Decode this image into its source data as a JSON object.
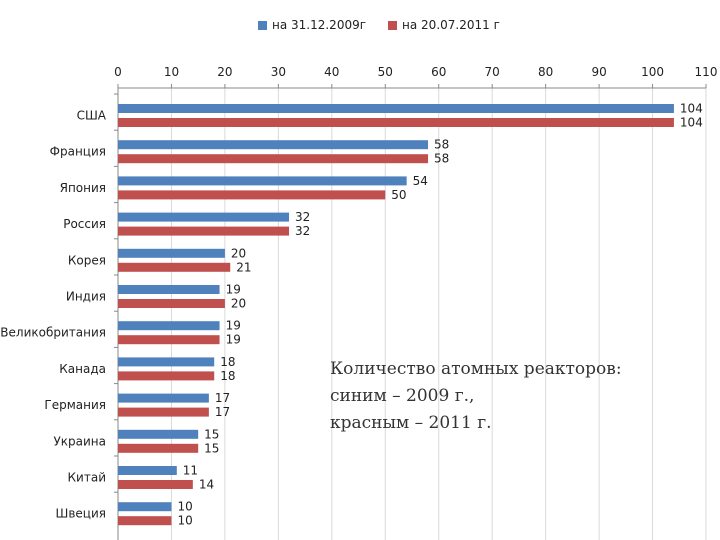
{
  "legend": [
    {
      "label": "на 31.12.2009г",
      "color": "#4f81bd"
    },
    {
      "label": "на 20.07.2011 г",
      "color": "#c0504d"
    }
  ],
  "note": {
    "line1": "Количество атомных реакторов:",
    "line2": "синим – 2009 г.,",
    "line3": "красным – 2011 г."
  },
  "chart_data": {
    "type": "bar",
    "orientation": "horizontal",
    "categories": [
      "США",
      "Франция",
      "Япония",
      "Россия",
      "Корея",
      "Индия",
      "Великобритания",
      "Канада",
      "Германия",
      "Украина",
      "Китай",
      "Швеция"
    ],
    "series": [
      {
        "name": "на 31.12.2009г",
        "color": "#4f81bd",
        "values": [
          104,
          58,
          54,
          32,
          20,
          19,
          19,
          18,
          17,
          15,
          11,
          10
        ]
      },
      {
        "name": "на 20.07.2011 г",
        "color": "#c0504d",
        "values": [
          104,
          58,
          50,
          32,
          21,
          20,
          19,
          18,
          17,
          15,
          14,
          10
        ]
      }
    ],
    "xlim": [
      0,
      110
    ],
    "xticks": [
      0,
      10,
      20,
      30,
      40,
      50,
      60,
      70,
      80,
      90,
      100,
      110
    ],
    "axis_position": "top",
    "grid": true,
    "legend_position": "top"
  }
}
